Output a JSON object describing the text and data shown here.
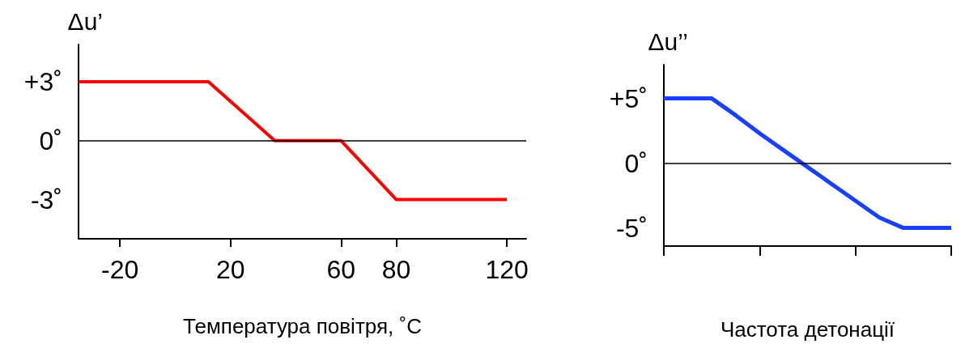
{
  "chart_data": [
    {
      "type": "line",
      "xlabel": "Температура повітря, ˚C",
      "ylabel": "Δu’",
      "x": [
        -35,
        12,
        36,
        60,
        80,
        120
      ],
      "values": [
        3,
        3,
        0,
        0,
        -3,
        -3
      ],
      "color": "#ff0000",
      "xlim": [
        -35,
        127
      ],
      "xticks": [
        -20,
        20,
        60,
        80,
        120
      ],
      "ylim": [
        -5,
        4.9
      ],
      "yticks": [
        {
          "value": 3,
          "label": "+3˚"
        },
        {
          "value": 0,
          "label": "0˚"
        },
        {
          "value": -3,
          "label": "-3˚"
        }
      ],
      "ref_lines": [
        {
          "axis": "y",
          "value": 0,
          "color": "#000000"
        }
      ],
      "grid": false,
      "marker": "none",
      "line_style": "solid"
    },
    {
      "type": "line",
      "xlabel": "Частота детонації",
      "ylabel": "Δu’’",
      "categories": [
        null,
        null,
        null,
        null,
        null,
        null,
        null,
        null,
        null,
        null,
        null,
        null,
        null
      ],
      "values": [
        5,
        5,
        5,
        3.7,
        2.3,
        1,
        -0.3,
        -1.6,
        -2.9,
        -4.2,
        -5,
        -5,
        -5
      ],
      "color": "#1a40ff",
      "ylim": [
        -6.4,
        7.6
      ],
      "yticks": [
        {
          "value": 5,
          "label": "+5˚"
        },
        {
          "value": 0,
          "label": "0˚"
        },
        {
          "value": -5,
          "label": "-5˚"
        }
      ],
      "ref_lines": [
        {
          "axis": "y",
          "value": 0,
          "color": "#000000"
        }
      ],
      "tick_labels": "y",
      "grid": false,
      "marker": "none",
      "line_style": "solid"
    }
  ]
}
